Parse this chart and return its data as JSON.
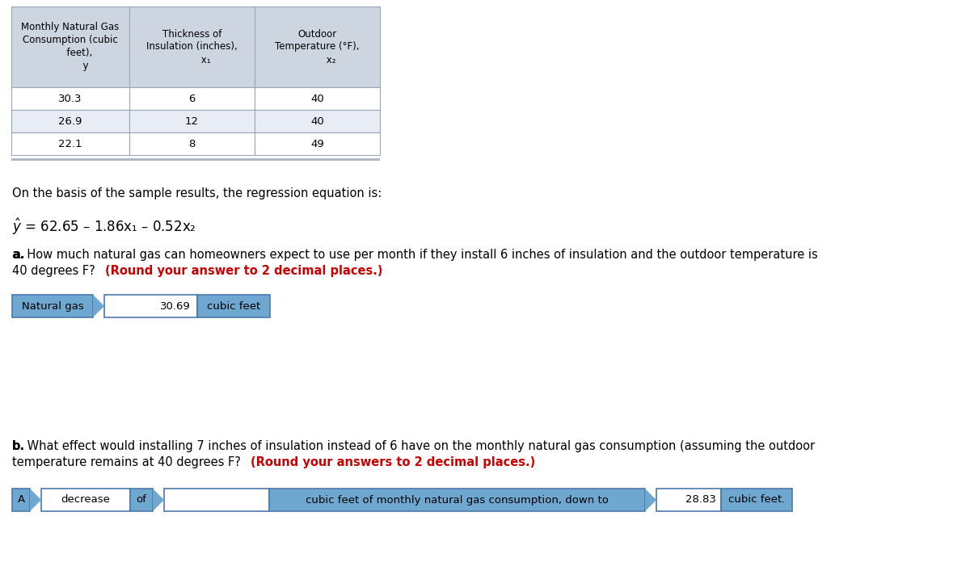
{
  "bg_color": "#ffffff",
  "table_header_bg": "#cdd5e0",
  "table_row1_bg": "#ffffff",
  "table_row2_bg": "#e8edf5",
  "table_row3_bg": "#ffffff",
  "table_border_color": "#9aa5b8",
  "table_data": [
    [
      "30.3",
      "6",
      "40"
    ],
    [
      "26.9",
      "12",
      "40"
    ],
    [
      "22.1",
      "8",
      "49"
    ]
  ],
  "regression_intro": "On the basis of the sample results, the regression equation is:",
  "answer_a_label": "Natural gas",
  "answer_a_value": "30.69",
  "answer_a_unit": "cubic feet",
  "answer_b_word": "decrease",
  "answer_b_of": "of",
  "answer_b_middle": "cubic feet of monthly natural gas consumption, down to",
  "answer_b_value": "28.83",
  "answer_b_unit": "cubic feet.",
  "box_bg": "#6ea8d0",
  "box_border": "#4a7aaa",
  "input_bg": "#ffffff",
  "text_color": "#000000",
  "red_color": "#cc0000",
  "fig_w": 12.0,
  "fig_h": 7.12,
  "dpi": 100
}
